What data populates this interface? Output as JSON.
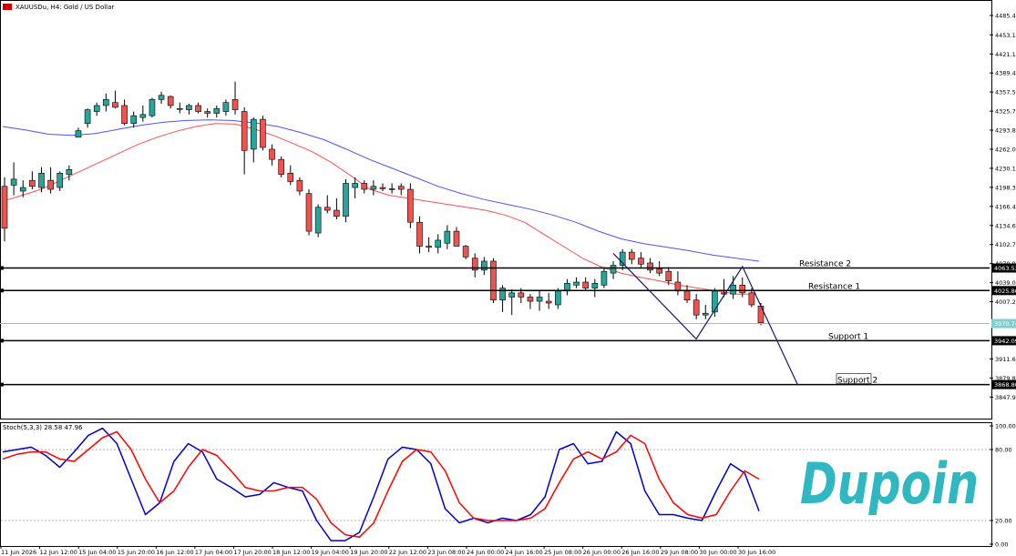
{
  "header": {
    "symbol_title": "XAUUSDu, H4:  Gold / US Dollar"
  },
  "logo": {
    "text": "Dupoin"
  },
  "colors": {
    "bull": "#26a69a",
    "bear": "#ef5350",
    "ma_fast": "#ff5050",
    "ma_slow": "#5050ff",
    "stoch_k": "#0000cc",
    "stoch_d": "#ff0000",
    "current_price": "#7fcfcf",
    "logo": "#2fb8c0",
    "trend_line": "#1a1a66"
  },
  "chart_data": [
    {
      "type": "candlestick",
      "symbol": "XAUUSDu",
      "timeframe": "H4",
      "ylim": [
        3815,
        4490
      ],
      "y_ticks": [
        "4485.40",
        "4453.10",
        "4421.15",
        "4389.40",
        "4357.55",
        "4325.70",
        "4293.85",
        "4262.00",
        "4230.15",
        "4198.30",
        "4166.45",
        "4134.60",
        "4102.75",
        "4070.90",
        "4039.05",
        "4007.20",
        "3911.65",
        "3879.80",
        "3847.95"
      ],
      "x_ticks": [
        "11 Jun 2026",
        "12 Jun 12:00",
        "15 Jun 04:00",
        "15 Jun 20:00",
        "16 Jun 12:00",
        "17 Jun 04:00",
        "17 Jun 20:00",
        "18 Jun 12:00",
        "19 Jun 04:00",
        "19 Jun 20:00",
        "22 Jun 12:00",
        "23 Jun 08:00",
        "24 Jun 00:00",
        "24 Jun 16:00",
        "25 Jun 08:00",
        "26 Jun 00:00",
        "26 Jun 16:00",
        "29 Jun 08:00",
        "30 Jun 00:00",
        "30 Jun 16:00"
      ],
      "candles": [
        [
          4200,
          4215,
          4108,
          4130
        ],
        [
          4202,
          4240,
          4185,
          4212
        ],
        [
          4192,
          4210,
          4182,
          4198
        ],
        [
          4210,
          4225,
          4195,
          4200
        ],
        [
          4198,
          4232,
          4190,
          4222
        ],
        [
          4210,
          4232,
          4188,
          4195
        ],
        [
          4198,
          4225,
          4192,
          4222
        ],
        [
          4220,
          4235,
          4210,
          4228
        ],
        [
          4282,
          4298,
          4282,
          4293
        ],
        [
          4305,
          4330,
          4298,
          4328
        ],
        [
          4325,
          4340,
          4318,
          4335
        ],
        [
          4335,
          4355,
          4325,
          4345
        ],
        [
          4340,
          4360,
          4330,
          4332
        ],
        [
          4335,
          4345,
          4302,
          4305
        ],
        [
          4305,
          4325,
          4298,
          4318
        ],
        [
          4315,
          4335,
          4308,
          4320
        ],
        [
          4318,
          4348,
          4315,
          4345
        ],
        [
          4345,
          4358,
          4338,
          4352
        ],
        [
          4350,
          4352,
          4330,
          4335
        ],
        [
          4330,
          4340,
          4322,
          4330
        ],
        [
          4328,
          4338,
          4320,
          4335
        ],
        [
          4335,
          4340,
          4322,
          4325
        ],
        [
          4325,
          4330,
          4315,
          4322
        ],
        [
          4322,
          4335,
          4315,
          4330
        ],
        [
          4325,
          4345,
          4318,
          4340
        ],
        [
          4345,
          4375,
          4320,
          4328
        ],
        [
          4325,
          4332,
          4220,
          4260
        ],
        [
          4262,
          4315,
          4240,
          4312
        ],
        [
          4312,
          4318,
          4260,
          4265
        ],
        [
          4262,
          4270,
          4235,
          4245
        ],
        [
          4245,
          4250,
          4215,
          4220
        ],
        [
          4222,
          4235,
          4202,
          4208
        ],
        [
          4210,
          4215,
          4185,
          4192
        ],
        [
          4188,
          4195,
          4118,
          4125
        ],
        [
          4122,
          4170,
          4115,
          4165
        ],
        [
          4165,
          4185,
          4155,
          4160
        ],
        [
          4160,
          4180,
          4145,
          4150
        ],
        [
          4150,
          4212,
          4140,
          4205
        ],
        [
          4198,
          4215,
          4180,
          4205
        ],
        [
          4205,
          4210,
          4188,
          4195
        ],
        [
          4195,
          4210,
          4185,
          4200
        ],
        [
          4198,
          4205,
          4192,
          4196
        ],
        [
          4196,
          4205,
          4188,
          4195
        ],
        [
          4200,
          4205,
          4185,
          4195
        ],
        [
          4195,
          4205,
          4130,
          4140
        ],
        [
          4140,
          4150,
          4088,
          4100
        ],
        [
          4100,
          4115,
          4090,
          4098
        ],
        [
          4098,
          4120,
          4088,
          4110
        ],
        [
          4105,
          4135,
          4095,
          4125
        ],
        [
          4125,
          4132,
          4100,
          4100
        ],
        [
          4100,
          4102,
          4078,
          4082
        ],
        [
          4080,
          4088,
          4048,
          4060
        ],
        [
          4060,
          4082,
          4052,
          4075
        ],
        [
          4075,
          4080,
          4005,
          4010
        ],
        [
          4010,
          4035,
          3990,
          4030
        ],
        [
          4015,
          4028,
          3985,
          4022
        ],
        [
          4022,
          4030,
          4005,
          4015
        ],
        [
          4015,
          4020,
          3995,
          4008
        ],
        [
          4008,
          4025,
          3992,
          4015
        ],
        [
          4008,
          4022,
          3995,
          4005
        ],
        [
          4002,
          4030,
          3995,
          4025
        ],
        [
          4025,
          4045,
          4018,
          4038
        ],
        [
          4035,
          4048,
          4030,
          4040
        ],
        [
          4040,
          4048,
          4025,
          4030
        ],
        [
          4030,
          4045,
          4015,
          4038
        ],
        [
          4035,
          4065,
          4030,
          4058
        ],
        [
          4055,
          4075,
          4045,
          4068
        ],
        [
          4068,
          4095,
          4060,
          4090
        ],
        [
          4090,
          4095,
          4070,
          4078
        ],
        [
          4080,
          4090,
          4065,
          4070
        ],
        [
          4072,
          4080,
          4055,
          4060
        ],
        [
          4062,
          4075,
          4050,
          4055
        ],
        [
          4058,
          4065,
          4035,
          4042
        ],
        [
          4040,
          4058,
          4018,
          4025
        ],
        [
          4025,
          4035,
          4005,
          4010
        ],
        [
          4010,
          4020,
          3978,
          3985
        ],
        [
          3985,
          4002,
          3978,
          3988
        ],
        [
          3990,
          4030,
          3982,
          4025
        ],
        [
          4022,
          4045,
          4015,
          4020
        ],
        [
          4020,
          4050,
          4012,
          4035
        ],
        [
          4035,
          4048,
          4015,
          4022
        ],
        [
          4022,
          4030,
          3998,
          4002
        ],
        [
          4000,
          4005,
          3968,
          3972
        ]
      ],
      "moving_averages": [
        {
          "period_label": "fast",
          "values": [
            4175,
            4185,
            4195,
            4210,
            4225,
            4240,
            4255,
            4270,
            4282,
            4292,
            4300,
            4305,
            4304,
            4296,
            4285,
            4272,
            4258,
            4240,
            4218,
            4195,
            4185,
            4180,
            4175,
            4170,
            4165,
            4160,
            4152,
            4140,
            4120,
            4100,
            4080,
            4065,
            4055,
            4048,
            4042,
            4035,
            4030,
            4025,
            4020,
            4020
          ]
        },
        {
          "period_label": "slow",
          "values": [
            4300,
            4294,
            4287,
            4285,
            4288,
            4295,
            4302,
            4307,
            4310,
            4311,
            4310,
            4306,
            4300,
            4290,
            4278,
            4262,
            4245,
            4230,
            4215,
            4200,
            4188,
            4178,
            4170,
            4162,
            4152,
            4140,
            4125,
            4112,
            4104,
            4098,
            4092,
            4085,
            4080,
            4075
          ]
        }
      ],
      "horizontal_levels": [
        {
          "name": "Resistance 2",
          "price": "4063.53"
        },
        {
          "name": "Resistance 1",
          "price": "4025.86"
        },
        {
          "name": "Support 1",
          "price": "3942.09"
        },
        {
          "name": "Support 2",
          "price": "3868.80"
        }
      ],
      "current_price": "3970.74",
      "pattern_points": [
        [
          4088,
          66
        ],
        [
          3945,
          75
        ],
        [
          4066,
          80
        ],
        [
          3868,
          86
        ]
      ]
    },
    {
      "type": "line",
      "indicator": "Stoch(5,3,3)",
      "header_label": "Stoch(5,3,3) 28.58 47.96",
      "ylim": [
        0,
        100
      ],
      "y_ticks": [
        "100.00",
        "80.00",
        "20.00",
        "0.00"
      ],
      "levels": [
        80,
        20
      ],
      "series": [
        {
          "name": "K",
          "values": [
            78,
            80,
            82,
            75,
            65,
            78,
            92,
            98,
            85,
            55,
            25,
            35,
            70,
            85,
            78,
            55,
            48,
            40,
            42,
            52,
            48,
            45,
            20,
            3,
            3,
            10,
            40,
            72,
            82,
            80,
            68,
            30,
            18,
            22,
            18,
            22,
            20,
            25,
            40,
            80,
            85,
            68,
            70,
            95,
            85,
            45,
            25,
            25,
            22,
            20,
            45,
            68,
            60,
            28
          ]
        },
        {
          "name": "D",
          "values": [
            72,
            76,
            78,
            78,
            72,
            70,
            80,
            90,
            95,
            80,
            55,
            35,
            45,
            65,
            80,
            75,
            62,
            48,
            45,
            45,
            48,
            48,
            38,
            18,
            8,
            6,
            18,
            45,
            70,
            80,
            78,
            62,
            35,
            22,
            20,
            20,
            20,
            22,
            30,
            52,
            72,
            78,
            72,
            78,
            92,
            85,
            55,
            35,
            25,
            22,
            25,
            45,
            62,
            55
          ]
        }
      ]
    }
  ]
}
